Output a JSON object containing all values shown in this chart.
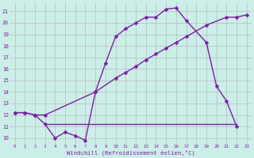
{
  "line1_x": [
    0,
    1,
    2,
    3,
    8,
    10,
    11,
    12,
    13,
    14,
    15,
    16,
    17,
    19,
    21,
    22,
    23
  ],
  "line1_y": [
    12.2,
    12.2,
    12.0,
    12.0,
    14.0,
    15.2,
    15.7,
    16.2,
    16.8,
    17.3,
    17.8,
    18.3,
    18.8,
    19.8,
    20.5,
    20.5,
    20.7
  ],
  "line2_x": [
    0,
    1,
    2,
    3,
    4,
    5,
    6,
    7,
    8,
    9,
    10,
    11,
    12,
    13,
    14,
    15,
    16,
    17,
    19,
    20,
    21,
    22
  ],
  "line2_y": [
    12.2,
    12.2,
    12.0,
    11.2,
    10.0,
    10.5,
    10.2,
    9.8,
    14.0,
    16.5,
    18.8,
    19.5,
    20.0,
    20.5,
    20.5,
    21.2,
    21.3,
    20.2,
    18.3,
    14.5,
    13.2,
    11.0
  ],
  "line3_x": [
    3,
    10,
    22
  ],
  "line3_y": [
    11.2,
    11.2,
    11.2
  ],
  "color": "#7b1fa2",
  "bg_color": "#cceee8",
  "grid_color": "#b0b0b0",
  "xlabel": "Windchill (Refroidissement éolien,°C)",
  "xlim": [
    -0.5,
    23.5
  ],
  "ylim": [
    9.5,
    21.8
  ],
  "yticks": [
    10,
    11,
    12,
    13,
    14,
    15,
    16,
    17,
    18,
    19,
    20,
    21
  ],
  "xticks": [
    0,
    1,
    2,
    3,
    4,
    5,
    6,
    7,
    8,
    9,
    10,
    11,
    12,
    13,
    14,
    15,
    16,
    17,
    18,
    19,
    20,
    21,
    22,
    23
  ],
  "marker": "D",
  "markersize": 2.5,
  "linewidth": 1.0
}
